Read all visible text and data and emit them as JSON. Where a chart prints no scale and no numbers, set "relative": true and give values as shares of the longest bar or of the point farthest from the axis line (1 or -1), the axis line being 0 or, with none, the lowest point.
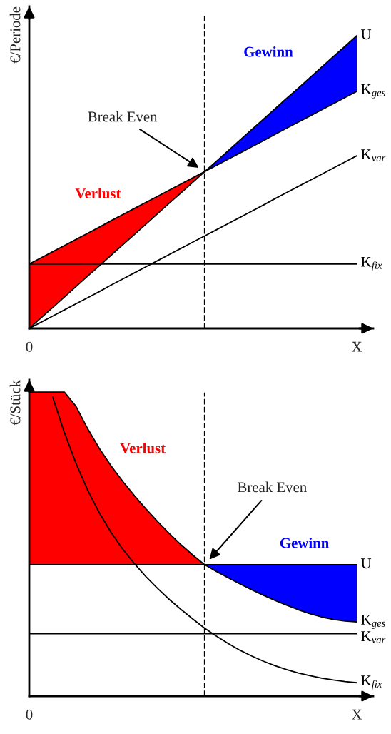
{
  "chart_data": [
    {
      "type": "line",
      "ylabel": "€/Periode",
      "relative": true,
      "tick_labels": "x",
      "categories": [
        "0",
        null,
        null,
        null,
        null,
        null,
        null,
        null,
        null,
        null,
        null,
        null,
        null,
        null,
        null,
        null,
        null,
        null,
        null,
        null,
        null,
        null,
        null,
        null,
        null,
        null,
        null,
        null,
        "X"
      ],
      "series": [
        {
          "name": "U",
          "color": "#000000",
          "values": [
            0,
            0.036,
            0.071,
            0.107,
            0.143,
            0.179,
            0.214,
            0.25,
            0.286,
            0.321,
            0.357,
            0.393,
            0.429,
            0.464,
            0.5,
            0.536,
            0.571,
            0.607,
            0.643,
            0.679,
            0.714,
            0.75,
            0.786,
            0.821,
            0.857,
            0.893,
            0.929,
            0.964,
            1
          ]
        },
        {
          "name": "K$_{ges}$",
          "color": "#000000",
          "values": [
            0.22,
            0.241,
            0.262,
            0.283,
            0.304,
            0.325,
            0.346,
            0.368,
            0.389,
            0.41,
            0.431,
            0.452,
            0.473,
            0.494,
            0.515,
            0.536,
            0.557,
            0.578,
            0.599,
            0.62,
            0.641,
            0.663,
            0.684,
            0.705,
            0.726,
            0.747,
            0.768,
            0.789,
            0.81
          ]
        },
        {
          "name": "K$_{var}$",
          "color": "#000000",
          "values": [
            0,
            0.021,
            0.042,
            0.063,
            0.084,
            0.105,
            0.126,
            0.148,
            0.169,
            0.19,
            0.211,
            0.232,
            0.253,
            0.274,
            0.295,
            0.316,
            0.337,
            0.358,
            0.379,
            0.4,
            0.421,
            0.443,
            0.464,
            0.485,
            0.506,
            0.527,
            0.548,
            0.569,
            0.59
          ]
        },
        {
          "name": "K$_{fix}$",
          "color": "#000000",
          "values": [
            0.22,
            0.22,
            0.22,
            0.22,
            0.22,
            0.22,
            0.22,
            0.22,
            0.22,
            0.22,
            0.22,
            0.22,
            0.22,
            0.22,
            0.22,
            0.22,
            0.22,
            0.22,
            0.22,
            0.22,
            0.22,
            0.22,
            0.22,
            0.22,
            0.22,
            0.22,
            0.22,
            0.22,
            0.22
          ]
        }
      ],
      "annotations": [
        "Verlust",
        "Gewinn",
        "Break Even"
      ]
    },
    {
      "type": "line",
      "ylabel": "€/Stück",
      "relative": true,
      "tick_labels": "x",
      "categories": [
        "0",
        null,
        null,
        null,
        null,
        null,
        null,
        null,
        null,
        null,
        null,
        null,
        null,
        null,
        null,
        null,
        null,
        null,
        null,
        null,
        null,
        null,
        null,
        null,
        null,
        null,
        null,
        null,
        "X"
      ],
      "series": [
        {
          "name": "U",
          "color": "#000000",
          "values": [
            0.432,
            0.432,
            0.432,
            0.432,
            0.432,
            0.432,
            0.432,
            0.432,
            0.432,
            0.432,
            0.432,
            0.432,
            0.432,
            0.432,
            0.432,
            0.432,
            0.432,
            0.432,
            0.432,
            0.432,
            0.432,
            0.432,
            0.432,
            0.432,
            0.432,
            0.432,
            0.432,
            0.432,
            0.432
          ]
        },
        {
          "name": "K$_{ges}$",
          "color": "#000000",
          "values": [
            1,
            1,
            1,
            1,
            0.953,
            0.879,
            0.814,
            0.757,
            0.706,
            0.659,
            0.615,
            0.573,
            0.534,
            0.497,
            0.463,
            0.432,
            0.41,
            0.389,
            0.369,
            0.35,
            0.332,
            0.315,
            0.299,
            0.284,
            0.271,
            0.26,
            0.252,
            0.247,
            0.244
          ]
        },
        {
          "name": "K$_{var}$",
          "color": "#000000",
          "values": [
            0.205,
            0.205,
            0.205,
            0.205,
            0.205,
            0.205,
            0.205,
            0.205,
            0.205,
            0.205,
            0.205,
            0.205,
            0.205,
            0.205,
            0.205,
            0.205,
            0.205,
            0.205,
            0.205,
            0.205,
            0.205,
            0.205,
            0.205,
            0.205,
            0.205,
            0.205,
            0.205,
            0.205,
            0.205
          ]
        },
        {
          "name": "K$_{fix}$",
          "color": "#000000",
          "values": [
            null,
            null,
            0.984,
            0.867,
            0.765,
            0.677,
            0.602,
            0.538,
            0.483,
            0.435,
            0.392,
            0.353,
            0.317,
            0.284,
            0.253,
            0.223,
            0.197,
            0.173,
            0.151,
            0.132,
            0.115,
            0.1,
            0.087,
            0.076,
            0.067,
            0.059,
            0.053,
            0.048,
            0.044
          ]
        }
      ],
      "annotations": [
        "Verlust",
        "Gewinn",
        "Break Even"
      ]
    }
  ]
}
